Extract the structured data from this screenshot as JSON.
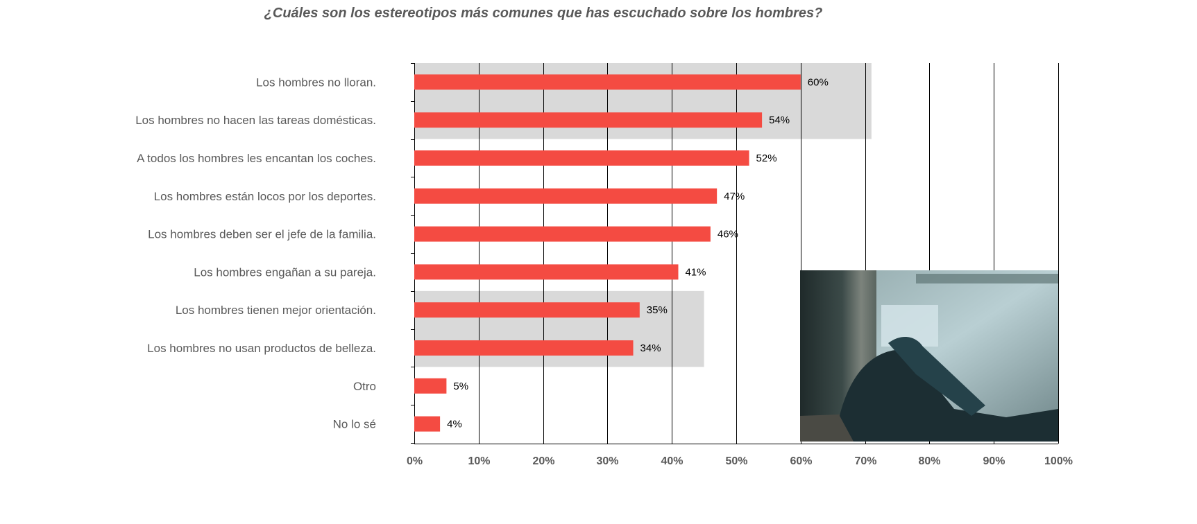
{
  "chart_data": {
    "type": "bar",
    "orientation": "horizontal",
    "title": "¿Cuáles son los estereotipos más comunes que has escuchado sobre los hombres?",
    "xlabel": "",
    "ylabel": "",
    "xlim": [
      0,
      100
    ],
    "x_ticks": [
      0,
      10,
      20,
      30,
      40,
      50,
      60,
      70,
      80,
      90,
      100
    ],
    "x_tick_labels": [
      "0%",
      "10%",
      "20%",
      "30%",
      "40%",
      "50%",
      "60%",
      "70%",
      "80%",
      "90%",
      "100%"
    ],
    "grid": true,
    "legend": "none",
    "categories": [
      "Los hombres no lloran.",
      "Los hombres no hacen las tareas domésticas.",
      "A todos los hombres les encantan los coches.",
      "Los hombres están locos por los deportes.",
      "Los hombres deben ser el jefe de la familia.",
      "Los hombres engañan a su pareja.",
      "Los hombres tienen mejor orientación.",
      "Los hombres no usan productos de belleza.",
      "Otro",
      "No lo sé"
    ],
    "values": [
      60,
      54,
      52,
      47,
      46,
      41,
      35,
      34,
      5,
      4
    ],
    "data_labels": [
      "60%",
      "54%",
      "52%",
      "47%",
      "46%",
      "41%",
      "35%",
      "34%",
      "5%",
      "4%"
    ],
    "highlighted_groups": [
      {
        "categories": [
          0,
          1
        ],
        "extent": 71
      },
      {
        "categories": [
          6,
          7
        ],
        "extent": 45
      }
    ],
    "image_inset": {
      "description": "photo of a person in jeans lying near a window",
      "position": "bottom-right"
    }
  },
  "colors": {
    "bar": "#F44B42",
    "highlight": "#D9D9D9",
    "gridline": "#000000",
    "text": "#595959"
  }
}
